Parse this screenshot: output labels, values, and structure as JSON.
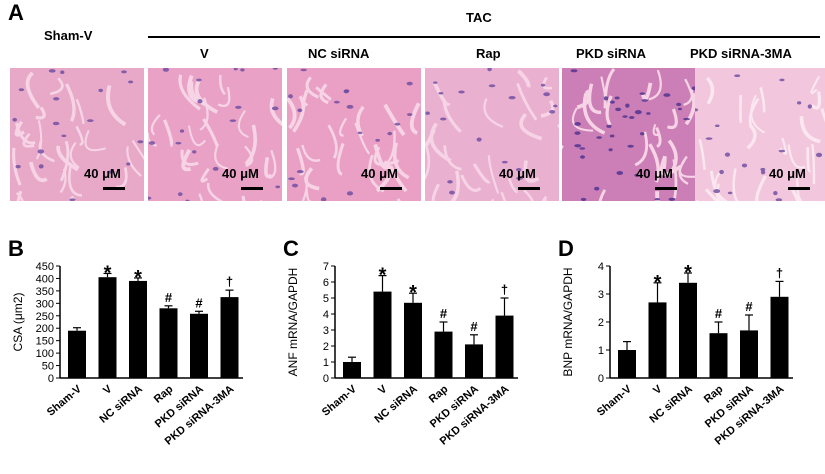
{
  "panel_a": {
    "letter": "A",
    "group_label": "TAC",
    "sham_label": "Sham-V",
    "column_labels": [
      "V",
      "NC siRNA",
      "Rap",
      "PKD siRNA",
      "PKD siRNA-3MA"
    ],
    "scale_label": "40 μM",
    "tile_colors": [
      "#e8a9c8",
      "#e9a2c6",
      "#eaa0c4",
      "#eab0d0",
      "#cc7fb6",
      "#f2c6dc"
    ]
  },
  "chart_data": [
    {
      "type": "bar",
      "letter": "B",
      "ylabel": "CSA (μm2)",
      "categories": [
        "Sham-V",
        "V",
        "NC siRNA",
        "Rap",
        "PKD siRNA",
        "PKD siRNA-3MA"
      ],
      "values": [
        190,
        405,
        390,
        280,
        258,
        325
      ],
      "errors": [
        12,
        15,
        12,
        10,
        10,
        28
      ],
      "markers": [
        "",
        "*",
        "*",
        "#",
        "#",
        "†"
      ],
      "ylim": [
        0,
        450
      ],
      "yticks": [
        0,
        50,
        100,
        150,
        200,
        250,
        300,
        350,
        400,
        450
      ]
    },
    {
      "type": "bar",
      "letter": "C",
      "ylabel": "ANF mRNA/GAPDH",
      "categories": [
        "Sham-V",
        "V",
        "NC siRNA",
        "Rap",
        "PKD siRNA",
        "PKD siRNA-3MA"
      ],
      "values": [
        1.0,
        5.4,
        4.7,
        2.9,
        2.1,
        3.9
      ],
      "errors": [
        0.3,
        1.0,
        0.6,
        0.6,
        0.6,
        1.1
      ],
      "markers": [
        "",
        "*",
        "*",
        "#",
        "#",
        "†"
      ],
      "ylim": [
        0,
        7
      ],
      "yticks": [
        0,
        1,
        2,
        3,
        4,
        5,
        6,
        7
      ]
    },
    {
      "type": "bar",
      "letter": "D",
      "ylabel": "BNP mRNA/GAPDH",
      "categories": [
        "Sham-V",
        "V",
        "NC siRNA",
        "Rap",
        "PKD siRNA",
        "PKD siRNA-3MA"
      ],
      "values": [
        1.0,
        2.7,
        3.4,
        1.6,
        1.7,
        2.9
      ],
      "errors": [
        0.3,
        0.7,
        0.35,
        0.4,
        0.55,
        0.55
      ],
      "markers": [
        "",
        "*",
        "*",
        "#",
        "#",
        "†"
      ],
      "ylim": [
        0,
        4
      ],
      "yticks": [
        0,
        1,
        2,
        3,
        4
      ]
    }
  ]
}
